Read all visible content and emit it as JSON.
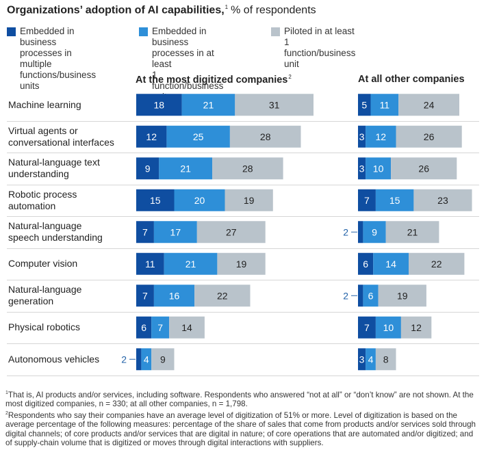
{
  "title": {
    "bold": "Organizations’ adoption of AI capabilities,",
    "note_marker": "1",
    "rest": "% of respondents"
  },
  "colors": {
    "multiple_units": "#0f4ea1",
    "at_least_one_embedded": "#2e8fd8",
    "piloted": "#b9c3cb",
    "outside_label": "#2262a8"
  },
  "legend": [
    {
      "label": "Embedded in business\nprocesses in multiple\nfunctions/business units",
      "color": "#0f4ea1"
    },
    {
      "label": "Embedded in business\nprocesses in at least\n1 function/business unit",
      "color": "#2e8fd8"
    },
    {
      "label": "Piloted in at least\n1 function/business unit",
      "color": "#b9c3cb"
    }
  ],
  "chart_data": {
    "type": "bar",
    "orientation": "horizontal",
    "stacked": true,
    "title": "Organizations’ adoption of AI capabilities, % of respondents",
    "categories": [
      "Machine learning",
      "Virtual agents or\nconversational interfaces",
      "Natural-language text\nunderstanding",
      "Robotic process\nautomation",
      "Natural-language\nspeech understanding",
      "Computer vision",
      "Natural-language\ngeneration",
      "Physical robotics",
      "Autonomous vehicles"
    ],
    "panels": [
      {
        "name": "At the most digitized companies",
        "note_marker": "2",
        "series": [
          {
            "name": "Embedded in business processes in multiple functions/business units",
            "values": [
              18,
              12,
              9,
              15,
              7,
              11,
              7,
              6,
              2
            ]
          },
          {
            "name": "Embedded in business processes in at least 1 function/business unit",
            "values": [
              21,
              25,
              21,
              20,
              17,
              21,
              16,
              7,
              4
            ]
          },
          {
            "name": "Piloted in at least 1 function/business unit",
            "values": [
              31,
              28,
              28,
              19,
              27,
              19,
              22,
              14,
              9
            ]
          }
        ]
      },
      {
        "name": "At all other companies",
        "note_marker": "",
        "series": [
          {
            "name": "Embedded in business processes in multiple functions/business units",
            "values": [
              5,
              3,
              3,
              7,
              2,
              6,
              2,
              7,
              3
            ]
          },
          {
            "name": "Embedded in business processes in at least 1 function/business unit",
            "values": [
              11,
              12,
              10,
              15,
              9,
              14,
              6,
              10,
              4
            ]
          },
          {
            "name": "Piloted in at least 1 function/business unit",
            "values": [
              24,
              26,
              26,
              23,
              21,
              22,
              19,
              12,
              8
            ]
          }
        ]
      }
    ],
    "unit": "% of respondents",
    "legend_position": "top",
    "grid": false
  },
  "footnotes": [
    {
      "marker": "1",
      "text": "That is, AI products and/or services, including software. Respondents who answered “not at all” or “don’t know” are not shown. At the most digitized companies, n = 330; at all other companies, n = 1,798."
    },
    {
      "marker": "2",
      "text": "Respondents who say their companies have an average level of digitization of 51% or more. Level of digitization is based on the average percentage of the following measures: percentage of the share of sales that come from products and/or services sold through digital channels; of core products and/or services that are digital in nature; of core operations that are automated and/or digitized; and of supply-chain volume that is digitized or moves through digital interactions with suppliers."
    }
  ]
}
